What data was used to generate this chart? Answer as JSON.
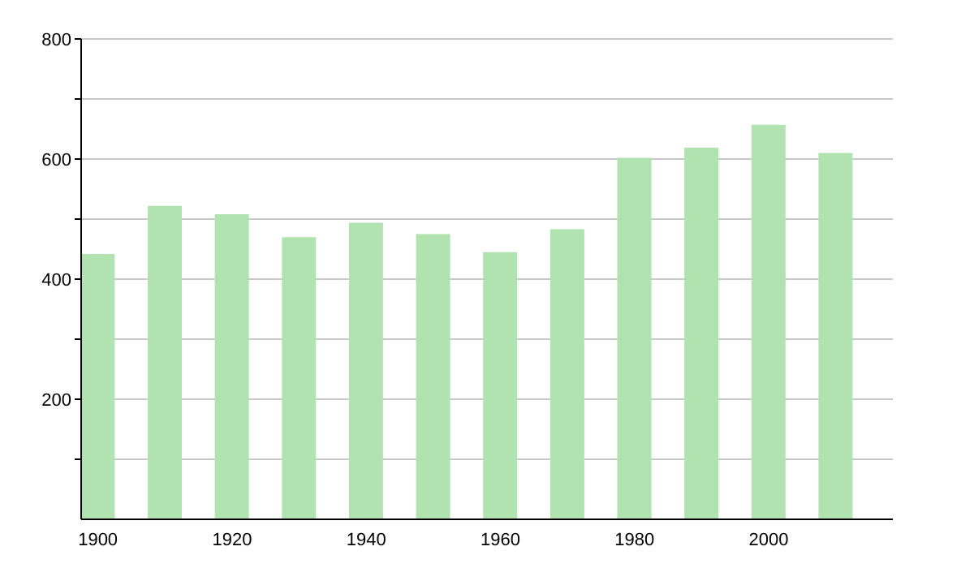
{
  "chart_data": {
    "type": "bar",
    "x": [
      1900,
      1910,
      1920,
      1930,
      1940,
      1950,
      1960,
      1970,
      1980,
      1990,
      2000,
      2010
    ],
    "values": [
      442,
      522,
      508,
      470,
      494,
      475,
      445,
      483,
      602,
      619,
      657,
      610
    ],
    "color": "#b0e3b0",
    "xlim": [
      1897.5,
      2018.5
    ],
    "xticks": [
      1900,
      1920,
      1940,
      1960,
      1980,
      2000
    ],
    "ylim": [
      0,
      800
    ],
    "yticks": [
      {
        "value": 100,
        "label": null
      },
      200,
      {
        "value": 300,
        "label": null
      },
      400,
      {
        "value": 500,
        "label": null
      },
      600,
      {
        "value": 700,
        "label": null
      },
      800
    ],
    "grid": "y"
  }
}
